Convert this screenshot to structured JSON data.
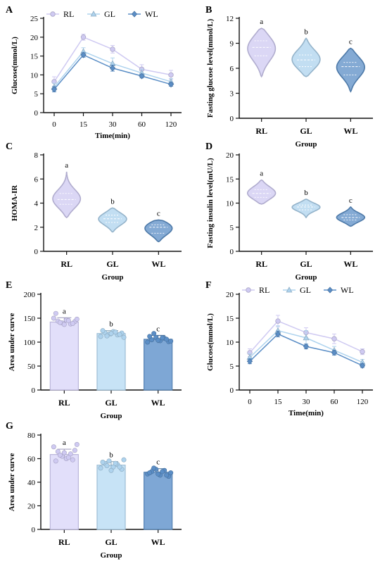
{
  "colors": {
    "RL": "#cfcaf2",
    "GL": "#aed3ee",
    "WL": "#5b8ec6",
    "RL_bar": "#e2dffa",
    "GL_bar": "#c7e3f6",
    "WL_bar": "#7ea7d5",
    "axis": "#111111"
  },
  "chart_data": [
    {
      "panel": "A",
      "type": "line",
      "xlabel": "Time(min)",
      "ylabel": "Glucose(mmol/L)",
      "x": [
        "0",
        "15",
        "30",
        "60",
        "120"
      ],
      "ylim": [
        0,
        25
      ],
      "yticks": [
        0,
        5,
        10,
        15,
        20,
        25
      ],
      "legend_position": "top-left",
      "series": [
        {
          "name": "RL",
          "key": "RL",
          "marker": "circle",
          "values": [
            8.2,
            20.0,
            16.8,
            11.5,
            10.0
          ],
          "errors": [
            1.3,
            0.8,
            1.0,
            1.2,
            1.2
          ]
        },
        {
          "name": "GL",
          "key": "GL",
          "marker": "triangle",
          "values": [
            6.8,
            16.2,
            13.0,
            10.5,
            8.2
          ],
          "errors": [
            1.0,
            1.0,
            1.5,
            1.0,
            0.8
          ]
        },
        {
          "name": "WL",
          "key": "WL",
          "marker": "diamond",
          "values": [
            6.2,
            15.3,
            11.8,
            9.7,
            7.5
          ],
          "errors": [
            0.7,
            0.6,
            0.8,
            0.5,
            0.5
          ]
        }
      ]
    },
    {
      "panel": "B",
      "type": "violin",
      "xlabel": "Group",
      "ylabel": "Fasting glucose level(mmol/L)",
      "categories": [
        "RL",
        "GL",
        "WL"
      ],
      "ylim": [
        0,
        12
      ],
      "yticks": [
        0,
        3,
        6,
        9,
        12
      ],
      "letters": [
        "a",
        "b",
        "c"
      ],
      "groups": [
        {
          "key": "RL",
          "min": 5.0,
          "max": 10.8,
          "median": 8.5,
          "q1": 7.5,
          "q3": 9.3
        },
        {
          "key": "GL",
          "min": 5.0,
          "max": 9.6,
          "median": 7.0,
          "q1": 6.2,
          "q3": 7.6
        },
        {
          "key": "WL",
          "min": 3.2,
          "max": 8.4,
          "median": 6.2,
          "q1": 5.2,
          "q3": 6.7
        }
      ]
    },
    {
      "panel": "C",
      "type": "violin",
      "xlabel": "Group",
      "ylabel": "HOMA-IR",
      "categories": [
        "RL",
        "GL",
        "WL"
      ],
      "ylim": [
        0,
        8
      ],
      "yticks": [
        0,
        2,
        4,
        6,
        8
      ],
      "letters": [
        "a",
        "b",
        "c"
      ],
      "groups": [
        {
          "key": "RL",
          "min": 2.8,
          "max": 6.6,
          "median": 4.3,
          "q1": 3.9,
          "q3": 4.8
        },
        {
          "key": "GL",
          "min": 1.6,
          "max": 3.6,
          "median": 2.7,
          "q1": 2.4,
          "q3": 3.0
        },
        {
          "key": "WL",
          "min": 0.8,
          "max": 2.6,
          "median": 2.0,
          "q1": 1.5,
          "q3": 2.2
        }
      ]
    },
    {
      "panel": "D",
      "type": "violin",
      "xlabel": "Group",
      "ylabel": "Fasting insulin level(mU/L)",
      "categories": [
        "RL",
        "GL",
        "WL"
      ],
      "ylim": [
        0,
        20
      ],
      "yticks": [
        0,
        5,
        10,
        15,
        20
      ],
      "letters": [
        "a",
        "b",
        "c"
      ],
      "groups": [
        {
          "key": "RL",
          "min": 9.8,
          "max": 14.8,
          "median": 12.0,
          "q1": 11.2,
          "q3": 12.8
        },
        {
          "key": "GL",
          "min": 7.0,
          "max": 10.8,
          "median": 9.2,
          "q1": 8.6,
          "q3": 9.6
        },
        {
          "key": "WL",
          "min": 5.2,
          "max": 9.2,
          "median": 7.0,
          "q1": 6.5,
          "q3": 7.6
        }
      ]
    },
    {
      "panel": "E",
      "type": "bar",
      "xlabel": "Group",
      "ylabel": "Area under curve",
      "categories": [
        "RL",
        "GL",
        "WL"
      ],
      "ylim": [
        0,
        200
      ],
      "yticks": [
        0,
        50,
        100,
        150,
        200
      ],
      "letters": [
        "a",
        "b",
        "c"
      ],
      "groups": [
        {
          "key": "RL",
          "value": 142,
          "error": 9,
          "points": [
            150,
            144,
            140,
            146,
            138,
            143,
            160,
            141,
            137,
            145,
            139,
            148
          ]
        },
        {
          "key": "GL",
          "value": 118,
          "error": 6,
          "points": [
            112,
            120,
            117,
            122,
            115,
            119,
            124,
            113,
            118,
            121,
            116,
            110
          ]
        },
        {
          "key": "WL",
          "value": 106,
          "error": 8,
          "points": [
            100,
            105,
            110,
            103,
            108,
            101,
            112,
            118,
            104,
            109,
            106,
            102
          ]
        }
      ]
    },
    {
      "panel": "F",
      "type": "line",
      "xlabel": "Time(min)",
      "ylabel": "Glucose(mmol/L)",
      "x": [
        "0",
        "15",
        "30",
        "60",
        "120"
      ],
      "ylim": [
        0,
        20
      ],
      "yticks": [
        0,
        5,
        10,
        15,
        20
      ],
      "legend_position": "top-left",
      "series": [
        {
          "name": "RL",
          "key": "RL",
          "marker": "circle",
          "values": [
            7.8,
            14.4,
            12.0,
            10.7,
            8.0
          ],
          "errors": [
            0.8,
            1.2,
            1.0,
            1.0,
            0.6
          ]
        },
        {
          "name": "GL",
          "key": "GL",
          "marker": "triangle",
          "values": [
            6.8,
            12.4,
            10.9,
            8.3,
            5.8
          ],
          "errors": [
            0.8,
            1.0,
            1.5,
            0.8,
            0.6
          ]
        },
        {
          "name": "WL",
          "key": "WL",
          "marker": "diamond",
          "values": [
            6.0,
            11.7,
            9.1,
            7.8,
            5.1
          ],
          "errors": [
            0.5,
            0.6,
            0.5,
            0.5,
            0.4
          ]
        }
      ]
    },
    {
      "panel": "G",
      "type": "bar",
      "xlabel": "Group",
      "ylabel": "Area under curve",
      "categories": [
        "RL",
        "GL",
        "WL"
      ],
      "ylim": [
        0,
        80
      ],
      "yticks": [
        0,
        20,
        40,
        60,
        80
      ],
      "letters": [
        "a",
        "b",
        "c"
      ],
      "groups": [
        {
          "key": "RL",
          "value": 63.5,
          "error": 4.5,
          "points": [
            70,
            66,
            62,
            60,
            64,
            67,
            58,
            63,
            65,
            61,
            59,
            72
          ]
        },
        {
          "key": "GL",
          "value": 54.5,
          "error": 3.0,
          "points": [
            52,
            56,
            58,
            53,
            55,
            51,
            57,
            54,
            50,
            56,
            53,
            59
          ]
        },
        {
          "key": "WL",
          "value": 48.5,
          "error": 3.0,
          "points": [
            47,
            49,
            51,
            46,
            50,
            45,
            48,
            52,
            47,
            49,
            46,
            48
          ]
        }
      ]
    }
  ]
}
